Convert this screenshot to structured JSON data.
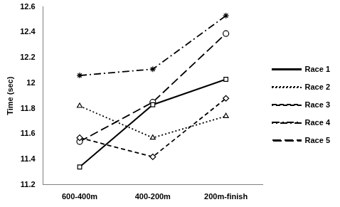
{
  "chart_data": {
    "type": "line",
    "y_label": "Time (sec)",
    "categories": [
      "600-400m",
      "400-200m",
      "200m-finish"
    ],
    "series": [
      {
        "name": "Race 1",
        "color": "#000000",
        "line_style": "solid",
        "marker": "square",
        "values": [
          11.34,
          11.83,
          12.03
        ]
      },
      {
        "name": "Race 2",
        "color": "#000000",
        "line_style": "dotted",
        "marker": "triangle",
        "values": [
          11.82,
          11.57,
          11.74
        ]
      },
      {
        "name": "Race 3",
        "color": "#000000",
        "line_style": "dashed",
        "marker": "diamond",
        "values": [
          11.57,
          11.42,
          11.88
        ]
      },
      {
        "name": "Race 4",
        "color": "#000000",
        "line_style": "dashdot",
        "marker": "star",
        "values": [
          12.06,
          12.11,
          12.53
        ]
      },
      {
        "name": "Race 5",
        "color": "#000000",
        "line_style": "longdash",
        "marker": "circle",
        "values": [
          11.54,
          11.85,
          12.39
        ]
      }
    ],
    "ylim": [
      11.2,
      12.6
    ],
    "yticks": [
      11.2,
      11.4,
      11.6,
      11.8,
      12,
      12.2,
      12.4,
      12.6
    ],
    "grid": false,
    "legend": "right"
  }
}
